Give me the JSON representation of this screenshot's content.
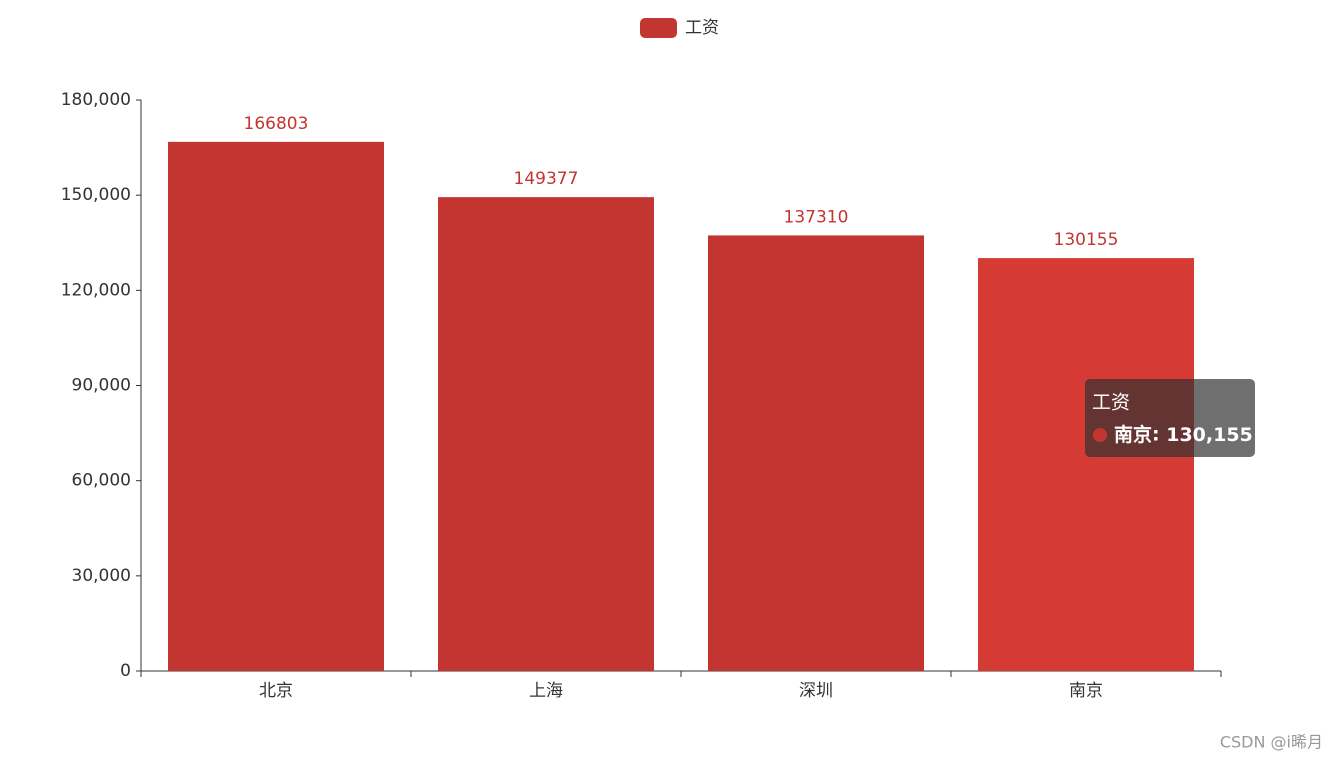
{
  "chart_data": {
    "type": "bar",
    "categories": [
      "北京",
      "上海",
      "深圳",
      "南京"
    ],
    "series": [
      {
        "name": "工资",
        "color": "#c23531",
        "values": [
          166803,
          149377,
          137310,
          130155
        ]
      }
    ],
    "ylim": [
      0,
      180000
    ],
    "yticks": [
      0,
      {
        "value": 30000,
        "label": "30,000"
      },
      {
        "value": 60000,
        "label": "60,000"
      },
      {
        "value": 90000,
        "label": "90,000"
      },
      {
        "value": 120000,
        "label": "120,000"
      },
      {
        "value": 150000,
        "label": "150,000"
      },
      {
        "value": 180000,
        "label": "180,000"
      }
    ],
    "legend": "top",
    "tooltip": {
      "title": "工资",
      "category": "南京",
      "value": 130155,
      "value_label": "130,155",
      "highlight_color": "#d53a35"
    },
    "watermark": "CSDN @i晞月"
  }
}
